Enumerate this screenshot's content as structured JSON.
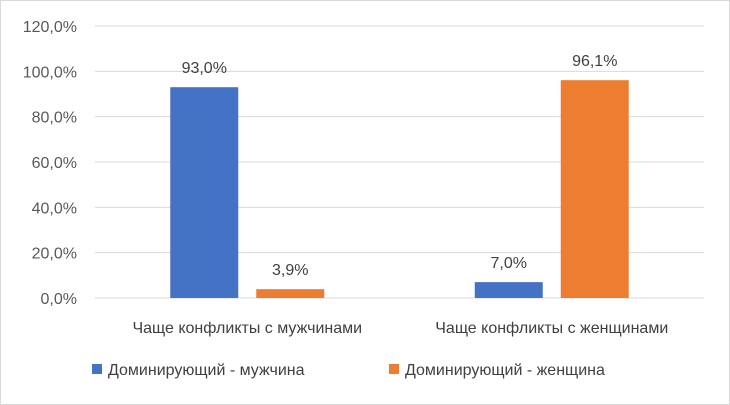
{
  "chart_data": {
    "type": "bar",
    "categories": [
      "Чаще конфликты с мужчинами",
      "Чаще конфликты с женщинами"
    ],
    "series": [
      {
        "name": "Доминирующий - мужчина",
        "values": [
          93.0,
          7.0
        ],
        "labels": [
          "93,0%",
          "7,0%"
        ],
        "color": "#4472C4"
      },
      {
        "name": "Доминирующий - женщина",
        "values": [
          3.9,
          96.1
        ],
        "labels": [
          "3,9%",
          "96,1%"
        ],
        "color": "#ED7D31"
      }
    ],
    "y_ticks": [
      0,
      20,
      40,
      60,
      80,
      100,
      120
    ],
    "y_tick_labels": [
      "0,0%",
      "20,0%",
      "40,0%",
      "60,0%",
      "80,0%",
      "100,0%",
      "120,0%"
    ],
    "ylim": [
      0,
      120
    ],
    "grid": true,
    "legend_position": "bottom",
    "gridline_color": "#d9d9d9"
  }
}
